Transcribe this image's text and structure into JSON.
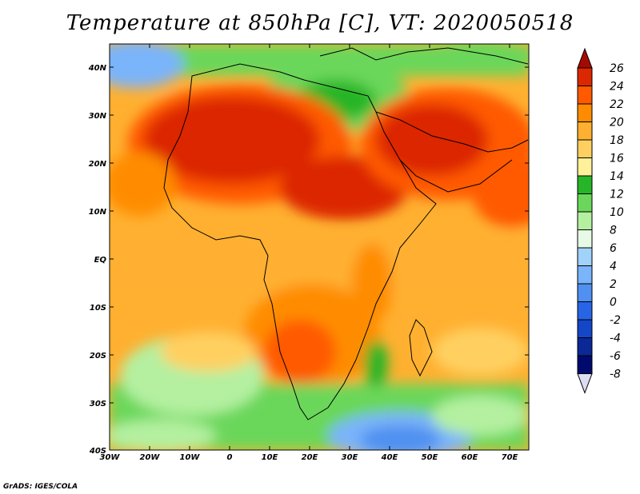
{
  "title": "Temperature at 850hPa [C], VT: 2020050518",
  "credit": "GrADS: IGES/COLA",
  "map": {
    "lat_ticks": [
      "40N",
      "30N",
      "20N",
      "10N",
      "EQ",
      "10S",
      "20S",
      "30S",
      "40S"
    ],
    "lon_ticks": [
      "30W",
      "20W",
      "10W",
      "0",
      "10E",
      "20E",
      "30E",
      "40E",
      "50E",
      "60E",
      "70E"
    ],
    "lon_range": [
      -30,
      75
    ],
    "lat_range": [
      -40,
      45
    ]
  },
  "colorbar": {
    "levels": [
      "26",
      "24",
      "22",
      "20",
      "18",
      "16",
      "14",
      "12",
      "10",
      "8",
      "6",
      "4",
      "2",
      "0",
      "-2",
      "-4",
      "-6",
      "-8"
    ],
    "colors": [
      "#a50a00",
      "#dc2800",
      "#ff5a00",
      "#ff8c00",
      "#ffb030",
      "#ffd060",
      "#fff09a",
      "#27b528",
      "#6ad75a",
      "#b4f0a0",
      "#e6fae6",
      "#a0d2fa",
      "#7ab4fa",
      "#5090f0",
      "#2864e6",
      "#1446c8",
      "#0a2896",
      "#000a6e",
      "#dcdcf5"
    ]
  },
  "chart_data": {
    "type": "heatmap",
    "title": "Temperature at 850hPa [C], VT: 2020050518",
    "xlabel": "",
    "ylabel": "",
    "x_range": [
      -30,
      75
    ],
    "y_range": [
      -40,
      45
    ],
    "x_ticks": [
      "30W",
      "20W",
      "10W",
      "0",
      "10E",
      "20E",
      "30E",
      "40E",
      "50E",
      "60E",
      "70E"
    ],
    "y_ticks": [
      "40S",
      "30S",
      "20S",
      "10S",
      "EQ",
      "10N",
      "20N",
      "30N",
      "40N"
    ],
    "colorbar_levels": [
      -8,
      -6,
      -4,
      -2,
      0,
      2,
      4,
      6,
      8,
      10,
      12,
      14,
      16,
      18,
      20,
      22,
      24,
      26
    ]
  }
}
